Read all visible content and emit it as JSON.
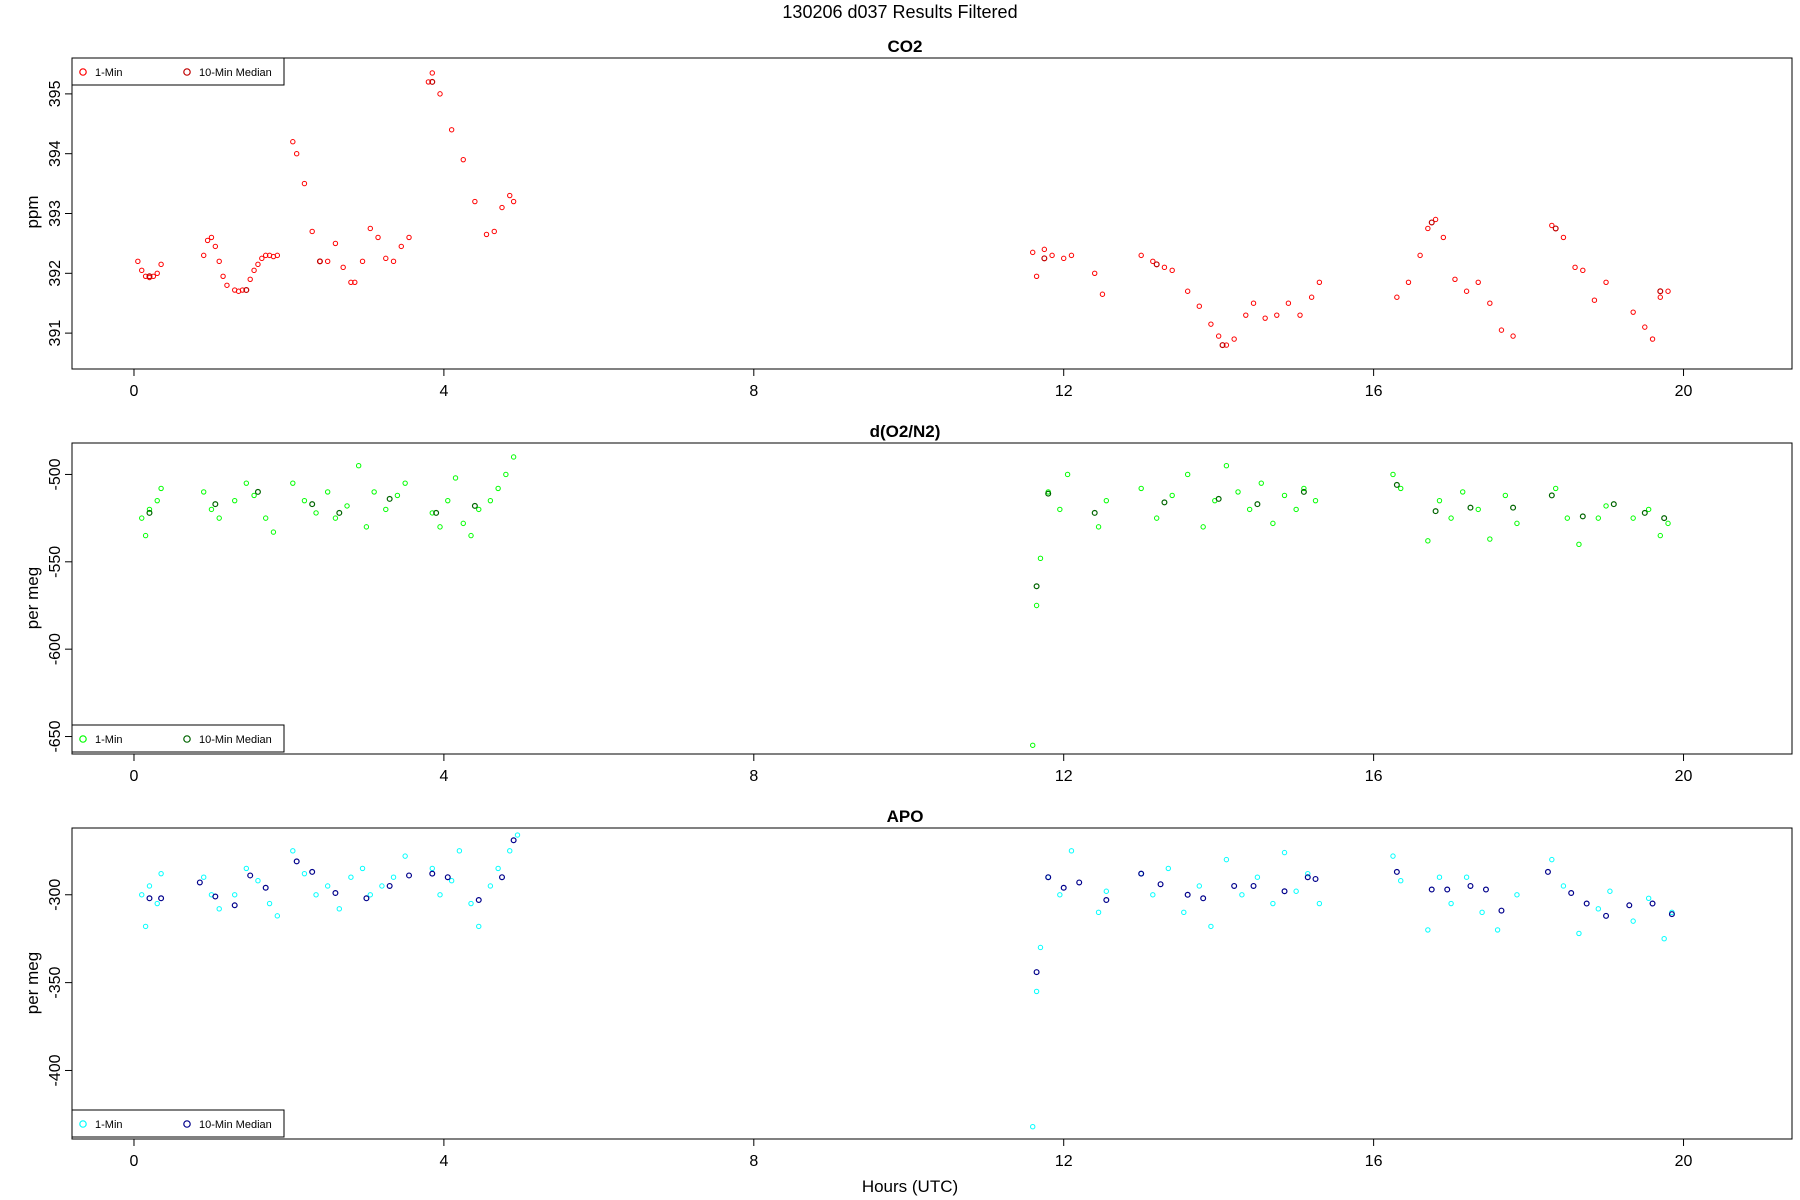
{
  "page_title": "130206   d037   Results Filtered",
  "xlabel": "Hours (UTC)",
  "chart_data": [
    {
      "type": "scatter",
      "title": "CO2",
      "ylabel": "ppm",
      "xlim": [
        -0.8,
        21.4
      ],
      "ylim": [
        390.4,
        395.6
      ],
      "xticks": [
        0,
        4,
        8,
        12,
        16,
        20
      ],
      "yticks": [
        391,
        392,
        393,
        394,
        395
      ],
      "legend": {
        "position": "top-left",
        "entries": [
          "1-Min",
          "10-Min Median"
        ]
      },
      "colors": {
        "one_min": "#ff0000",
        "median": "#c00000"
      },
      "series": [
        {
          "name": "1-Min",
          "x": [
            0.05,
            0.1,
            0.15,
            0.2,
            0.25,
            0.3,
            0.35,
            0.9,
            0.95,
            1.0,
            1.05,
            1.1,
            1.15,
            1.2,
            1.3,
            1.35,
            1.4,
            1.5,
            1.55,
            1.6,
            1.65,
            1.7,
            1.75,
            1.8,
            1.85,
            2.05,
            2.1,
            2.2,
            2.3,
            2.4,
            2.5,
            2.6,
            2.7,
            2.8,
            2.85,
            2.95,
            3.05,
            3.15,
            3.25,
            3.35,
            3.45,
            3.55,
            3.8,
            3.85,
            3.95,
            4.1,
            4.25,
            4.4,
            4.55,
            4.65,
            4.75,
            4.85,
            4.9,
            11.6,
            11.65,
            11.75,
            11.85,
            12.0,
            12.1,
            12.4,
            12.5,
            13.0,
            13.15,
            13.3,
            13.4,
            13.6,
            13.75,
            13.9,
            14.0,
            14.1,
            14.2,
            14.35,
            14.45,
            14.6,
            14.75,
            14.9,
            15.05,
            15.2,
            15.3,
            16.3,
            16.45,
            16.6,
            16.7,
            16.8,
            16.9,
            17.05,
            17.2,
            17.35,
            17.5,
            17.65,
            17.8,
            18.3,
            18.45,
            18.6,
            18.7,
            18.85,
            19.0,
            19.35,
            19.5,
            19.6,
            19.7,
            19.8
          ],
          "y": [
            392.2,
            392.05,
            391.95,
            391.93,
            391.95,
            392.0,
            392.15,
            392.3,
            392.55,
            392.6,
            392.45,
            392.2,
            391.95,
            391.8,
            391.72,
            391.7,
            391.72,
            391.9,
            392.05,
            392.15,
            392.25,
            392.3,
            392.3,
            392.28,
            392.3,
            394.2,
            394.0,
            393.5,
            392.7,
            392.2,
            392.2,
            392.5,
            392.1,
            391.85,
            391.85,
            392.2,
            392.75,
            392.6,
            392.25,
            392.2,
            392.45,
            392.6,
            395.2,
            395.35,
            395.0,
            394.4,
            393.9,
            393.2,
            392.65,
            392.7,
            393.1,
            393.3,
            393.2,
            392.35,
            391.95,
            392.4,
            392.3,
            392.25,
            392.3,
            392.0,
            391.65,
            392.3,
            392.2,
            392.1,
            392.05,
            391.7,
            391.45,
            391.15,
            390.95,
            390.8,
            390.9,
            391.3,
            391.5,
            391.25,
            391.3,
            391.5,
            391.3,
            391.6,
            391.85,
            391.6,
            391.85,
            392.3,
            392.75,
            392.9,
            392.6,
            391.9,
            391.7,
            391.85,
            391.5,
            391.05,
            390.95,
            392.8,
            392.6,
            392.1,
            392.05,
            391.55,
            391.85,
            391.35,
            391.1,
            390.9,
            391.6,
            391.7
          ]
        },
        {
          "name": "10-Min Median",
          "x": [
            0.2,
            1.45,
            2.4,
            3.85,
            11.75,
            13.2,
            14.05,
            16.75,
            18.35,
            19.7
          ],
          "y": [
            391.95,
            391.72,
            392.2,
            395.2,
            392.25,
            392.15,
            390.8,
            392.85,
            392.75,
            391.7
          ]
        }
      ]
    },
    {
      "type": "scatter",
      "title": "d(O2/N2)",
      "ylabel": "per meg",
      "xlim": [
        -0.8,
        21.4
      ],
      "ylim": [
        -660,
        -482
      ],
      "xticks": [
        0,
        4,
        8,
        12,
        16,
        20
      ],
      "yticks": [
        -500,
        -550,
        -600,
        -650
      ],
      "legend": {
        "position": "bottom-left",
        "entries": [
          "1-Min",
          "10-Min Median"
        ]
      },
      "colors": {
        "one_min": "#00ff00",
        "median": "#006400"
      },
      "series": [
        {
          "name": "1-Min",
          "x": [
            0.1,
            0.15,
            0.2,
            0.3,
            0.35,
            0.9,
            1.0,
            1.1,
            1.3,
            1.45,
            1.55,
            1.7,
            1.8,
            2.05,
            2.2,
            2.35,
            2.5,
            2.6,
            2.75,
            2.9,
            3.0,
            3.1,
            3.25,
            3.4,
            3.5,
            3.85,
            3.95,
            4.05,
            4.15,
            4.25,
            4.35,
            4.45,
            4.6,
            4.7,
            4.8,
            4.9,
            11.6,
            11.65,
            11.7,
            11.8,
            11.95,
            12.05,
            12.45,
            12.55,
            13.0,
            13.2,
            13.4,
            13.6,
            13.8,
            13.95,
            14.1,
            14.25,
            14.4,
            14.55,
            14.7,
            14.85,
            15.0,
            15.1,
            15.25,
            16.25,
            16.35,
            16.7,
            16.85,
            17.0,
            17.15,
            17.35,
            17.5,
            17.7,
            17.85,
            18.35,
            18.5,
            18.65,
            18.9,
            19.0,
            19.35,
            19.55,
            19.7,
            19.8
          ],
          "y": [
            -525,
            -535,
            -520,
            -515,
            -508,
            -510,
            -520,
            -525,
            -515,
            -505,
            -512,
            -525,
            -533,
            -505,
            -515,
            -522,
            -510,
            -525,
            -518,
            -495,
            -530,
            -510,
            -520,
            -512,
            -505,
            -522,
            -530,
            -515,
            -502,
            -528,
            -535,
            -520,
            -515,
            -508,
            -500,
            -490,
            -655,
            -575,
            -548,
            -510,
            -520,
            -500,
            -530,
            -515,
            -508,
            -525,
            -512,
            -500,
            -530,
            -515,
            -495,
            -510,
            -520,
            -505,
            -528,
            -512,
            -520,
            -508,
            -515,
            -500,
            -508,
            -538,
            -515,
            -525,
            -510,
            -520,
            -537,
            -512,
            -528,
            -508,
            -525,
            -540,
            -525,
            -518,
            -525,
            -520,
            -535,
            -528
          ]
        },
        {
          "name": "10-Min Median",
          "x": [
            0.2,
            1.05,
            1.6,
            2.3,
            2.65,
            3.3,
            3.9,
            4.4,
            11.65,
            11.8,
            12.4,
            13.3,
            14.0,
            14.5,
            15.1,
            16.3,
            16.8,
            17.25,
            17.8,
            18.3,
            18.7,
            19.1,
            19.5,
            19.75
          ],
          "y": [
            -522,
            -517,
            -510,
            -517,
            -522,
            -514,
            -522,
            -518,
            -564,
            -511,
            -522,
            -516,
            -514,
            -517,
            -510,
            -506,
            -521,
            -519,
            -519,
            -512,
            -524,
            -517,
            -522,
            -525
          ]
        }
      ]
    },
    {
      "type": "scatter",
      "title": "APO",
      "ylabel": "per meg",
      "xlim": [
        -0.8,
        21.4
      ],
      "ylim": [
        -439,
        -262
      ],
      "xticks": [
        0,
        4,
        8,
        12,
        16,
        20
      ],
      "yticks": [
        -300,
        -350,
        -400
      ],
      "legend": {
        "position": "bottom-left",
        "entries": [
          "1-Min",
          "10-Min Median"
        ]
      },
      "colors": {
        "one_min": "#00ffff",
        "median": "#00008b"
      },
      "series": [
        {
          "name": "1-Min",
          "x": [
            0.1,
            0.15,
            0.2,
            0.3,
            0.35,
            0.9,
            1.0,
            1.1,
            1.3,
            1.45,
            1.6,
            1.75,
            1.85,
            2.05,
            2.2,
            2.35,
            2.5,
            2.65,
            2.8,
            2.95,
            3.05,
            3.2,
            3.35,
            3.5,
            3.85,
            3.95,
            4.1,
            4.2,
            4.35,
            4.45,
            4.6,
            4.7,
            4.85,
            4.95,
            11.6,
            11.65,
            11.7,
            11.8,
            11.95,
            12.1,
            12.45,
            12.55,
            13.0,
            13.15,
            13.35,
            13.55,
            13.75,
            13.9,
            14.1,
            14.3,
            14.5,
            14.7,
            14.85,
            15.0,
            15.15,
            15.3,
            16.25,
            16.35,
            16.7,
            16.85,
            17.0,
            17.2,
            17.4,
            17.6,
            17.85,
            18.3,
            18.45,
            18.65,
            18.9,
            19.05,
            19.35,
            19.55,
            19.75,
            19.85
          ],
          "y": [
            -300,
            -318,
            -295,
            -305,
            -288,
            -290,
            -300,
            -308,
            -300,
            -285,
            -292,
            -305,
            -312,
            -275,
            -288,
            -300,
            -295,
            -308,
            -290,
            -285,
            -300,
            -295,
            -290,
            -278,
            -285,
            -300,
            -292,
            -275,
            -305,
            -318,
            -295,
            -285,
            -275,
            -266,
            -432,
            -355,
            -330,
            -290,
            -300,
            -275,
            -310,
            -298,
            -288,
            -300,
            -285,
            -310,
            -295,
            -318,
            -280,
            -300,
            -290,
            -305,
            -276,
            -298,
            -288,
            -305,
            -278,
            -292,
            -320,
            -290,
            -305,
            -290,
            -310,
            -320,
            -300,
            -280,
            -295,
            -322,
            -308,
            -298,
            -315,
            -302,
            -325,
            -310
          ]
        },
        {
          "name": "10-Min Median",
          "x": [
            0.2,
            0.35,
            0.85,
            1.05,
            1.3,
            1.5,
            1.7,
            2.1,
            2.3,
            2.6,
            3.0,
            3.3,
            3.55,
            3.85,
            4.05,
            4.45,
            4.75,
            4.9,
            11.65,
            11.8,
            12.0,
            12.2,
            12.55,
            13.0,
            13.25,
            13.6,
            13.8,
            14.2,
            14.45,
            14.85,
            15.15,
            15.25,
            16.3,
            16.75,
            16.95,
            17.25,
            17.45,
            17.65,
            18.25,
            18.55,
            18.75,
            19.0,
            19.3,
            19.6,
            19.85
          ],
          "y": [
            -302,
            -302,
            -293,
            -301,
            -306,
            -289,
            -296,
            -281,
            -287,
            -299,
            -302,
            -295,
            -289,
            -288,
            -290,
            -303,
            -290,
            -269,
            -344,
            -290,
            -296,
            -293,
            -303,
            -288,
            -294,
            -300,
            -302,
            -295,
            -295,
            -298,
            -290,
            -291,
            -287,
            -297,
            -297,
            -295,
            -297,
            -309,
            -287,
            -299,
            -305,
            -312,
            -306,
            -305,
            -311
          ]
        }
      ]
    }
  ]
}
